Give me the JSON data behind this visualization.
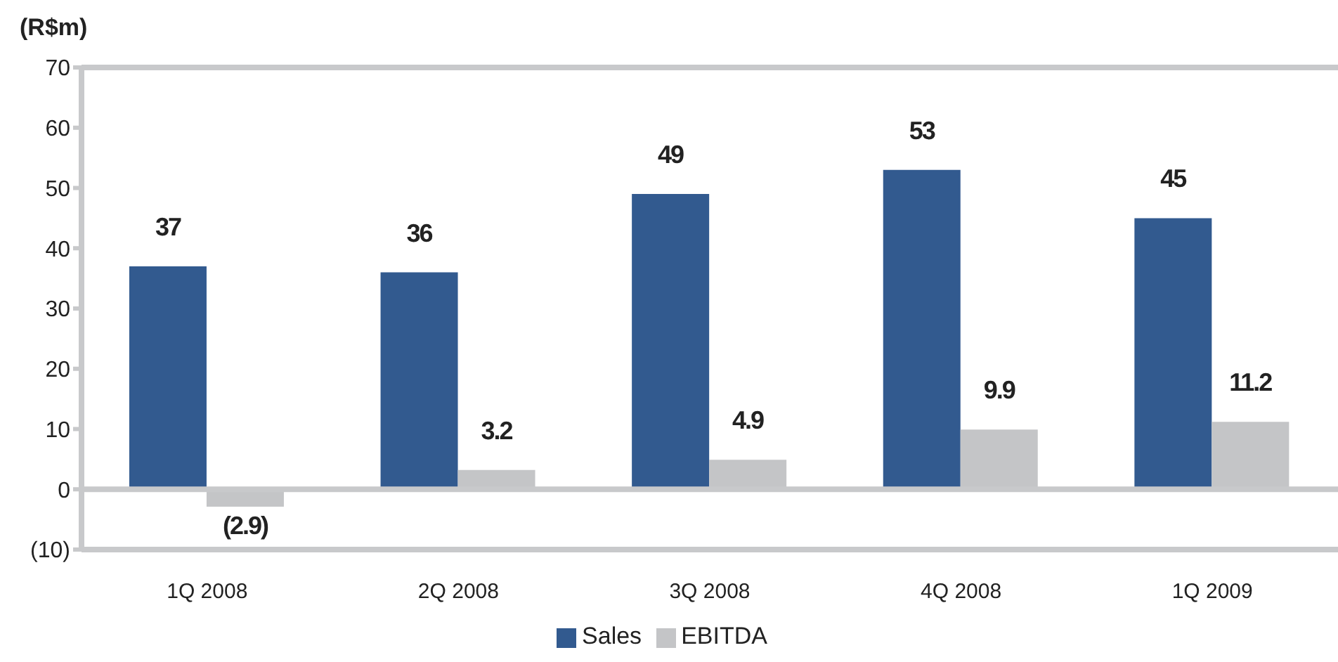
{
  "chart_data": {
    "type": "bar",
    "ylabel": "(R$m)",
    "categories": [
      "1Q 2008",
      "2Q 2008",
      "3Q 2008",
      "4Q 2008",
      "1Q 2009"
    ],
    "series": [
      {
        "name": "Sales",
        "color": "#325a8f",
        "values": [
          37,
          36,
          49,
          53,
          45
        ],
        "value_labels": [
          "37",
          "36",
          "49",
          "53",
          "45"
        ]
      },
      {
        "name": "EBITDA",
        "color": "#c4c5c7",
        "values": [
          -2.9,
          3.2,
          4.9,
          9.9,
          11.2
        ],
        "value_labels": [
          "(2.9)",
          "3.2",
          "4.9",
          "9.9",
          "11.2"
        ]
      }
    ],
    "ylim": [
      -10,
      70
    ],
    "yticks": [
      {
        "value": -10,
        "label": "(10)"
      },
      0,
      10,
      20,
      30,
      40,
      50,
      60,
      70
    ],
    "ref_lines": [
      {
        "axis": "y",
        "value": 0,
        "color": "#c8c9cb"
      }
    ],
    "grid": false,
    "legend": "bottom"
  }
}
